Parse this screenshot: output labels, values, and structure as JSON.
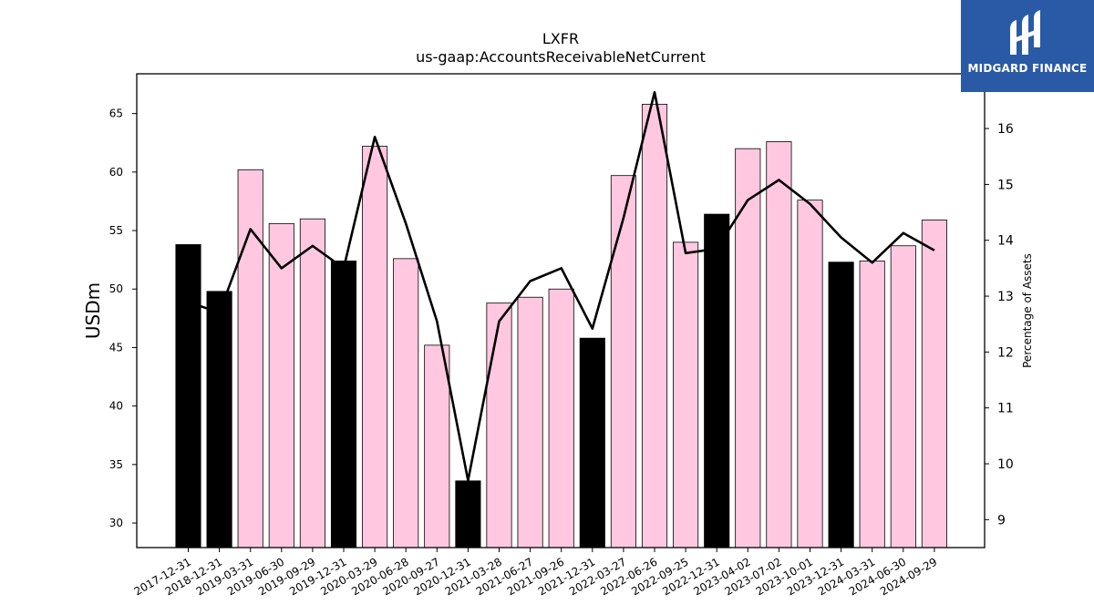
{
  "chart_data": {
    "type": "bar",
    "title": "LXFR",
    "subtitle": "us-gaap:AccountsReceivableNetCurrent",
    "ylabel": "USDm",
    "y2label": "Percentage of Assets",
    "ylim": [
      27.9,
      68.4
    ],
    "y2lim": [
      8.5,
      16.98
    ],
    "yticks": [
      30,
      35,
      40,
      45,
      50,
      55,
      60,
      65
    ],
    "y2ticks": [
      9,
      10,
      11,
      12,
      13,
      14,
      15,
      16
    ],
    "categories": [
      "2017-12-31",
      "2018-12-31",
      "2019-03-31",
      "2019-06-30",
      "2019-09-29",
      "2019-12-31",
      "2020-03-29",
      "2020-06-28",
      "2020-09-27",
      "2020-12-31",
      "2021-03-28",
      "2021-06-27",
      "2021-09-26",
      "2021-12-31",
      "2022-03-27",
      "2022-06-26",
      "2022-09-25",
      "2022-12-31",
      "2023-04-02",
      "2023-07-02",
      "2023-10-01",
      "2023-12-31",
      "2024-03-31",
      "2024-06-30",
      "2024-09-29"
    ],
    "series": [
      {
        "type": "bar",
        "values": [
          53.8,
          49.8,
          60.2,
          55.6,
          56.0,
          52.4,
          62.2,
          52.6,
          45.2,
          33.6,
          48.8,
          49.3,
          50.0,
          45.8,
          59.7,
          65.8,
          54.0,
          56.4,
          62.0,
          62.6,
          57.6,
          52.3,
          52.4,
          53.7,
          55.9
        ]
      },
      {
        "type": "line",
        "axis": "right",
        "values": [
          12.9,
          12.7,
          14.2,
          13.5,
          13.9,
          13.5,
          15.85,
          14.3,
          12.55,
          9.7,
          12.55,
          13.27,
          13.5,
          12.42,
          14.4,
          16.65,
          13.77,
          13.85,
          14.72,
          15.08,
          14.65,
          14.05,
          13.6,
          14.13,
          13.82
        ]
      }
    ],
    "annual_flags": [
      true,
      true,
      false,
      false,
      false,
      true,
      false,
      false,
      false,
      true,
      false,
      false,
      false,
      true,
      false,
      false,
      false,
      true,
      false,
      false,
      false,
      true,
      false,
      false,
      false
    ],
    "colors": {
      "annual_bar": "#000000",
      "quarter_bar": "#ffc8e0",
      "line": "#000000",
      "logo_bg": "#2a5aa6"
    },
    "grid": false,
    "legend": "none"
  },
  "logo": {
    "text": "MIDGARD FINANCE",
    "icon": "midgard-logo-icon"
  }
}
